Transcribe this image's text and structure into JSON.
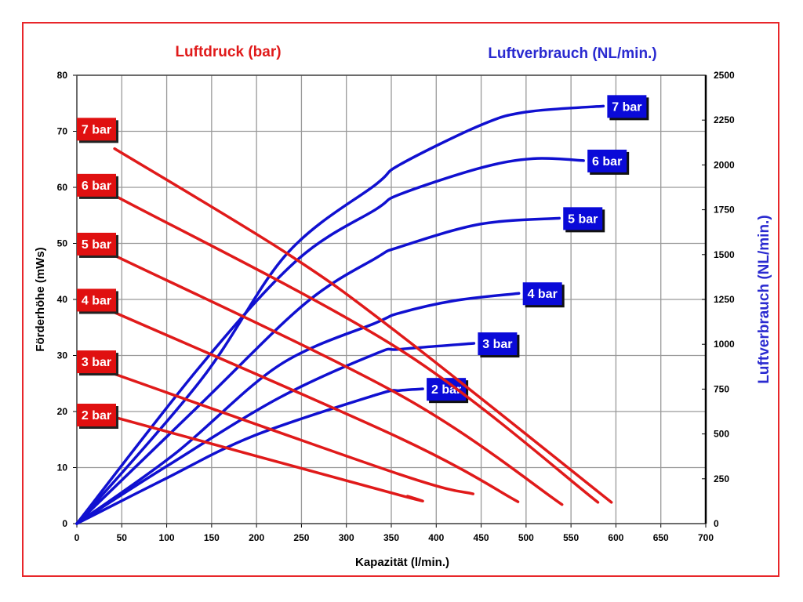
{
  "chart_data": {
    "type": "line",
    "title_left": "Luftdruck (bar)",
    "title_right": "Luftverbrauch (NL/min.)",
    "xlabel": "Kapazität (l/min.)",
    "ylabel": "Förderhöhe (mWs)",
    "y2label": "Luftverbrauch (NL/min.)",
    "xlim": [
      0,
      700
    ],
    "ylim": [
      0,
      80
    ],
    "y2lim": [
      0,
      2500
    ],
    "xticks": [
      0,
      50,
      100,
      150,
      200,
      250,
      300,
      350,
      400,
      450,
      500,
      550,
      600,
      650,
      700
    ],
    "yticks": [
      0,
      10,
      20,
      30,
      40,
      50,
      60,
      70,
      80
    ],
    "y2ticks": [
      0,
      250,
      500,
      750,
      1000,
      1250,
      1500,
      1750,
      2000,
      2250,
      2500
    ],
    "grid": true,
    "colors": {
      "head": "#e01a1a",
      "air": "#1010d0",
      "frame": "#e8262a"
    },
    "head_series": [
      {
        "name": "7 bar",
        "points": [
          [
            0,
            71
          ],
          [
            42,
            66.9
          ],
          [
            234,
            48.2
          ],
          [
            359,
            33.8
          ],
          [
            595,
            3.8
          ]
        ]
      },
      {
        "name": "6 bar",
        "points": [
          [
            0,
            61
          ],
          [
            46,
            58.2
          ],
          [
            359,
            31.1
          ],
          [
            580,
            3.8
          ]
        ]
      },
      {
        "name": "5 bar",
        "points": [
          [
            0,
            50.5
          ],
          [
            36,
            48.3
          ],
          [
            359,
            23.0
          ],
          [
            540,
            3.4
          ]
        ]
      },
      {
        "name": "4 bar",
        "points": [
          [
            0,
            40.5
          ],
          [
            33,
            38.3
          ],
          [
            359,
            15.3
          ],
          [
            491,
            3.9
          ]
        ]
      },
      {
        "name": "3 bar",
        "points": [
          [
            0,
            29.5
          ],
          [
            33,
            27.2
          ],
          [
            359,
            8.8
          ],
          [
            441,
            5.3
          ]
        ]
      },
      {
        "name": "2 bar",
        "points": [
          [
            0,
            20
          ],
          [
            46,
            18.8
          ],
          [
            359,
            5.1
          ],
          [
            368,
            4.9
          ]
        ]
      }
    ],
    "air_series": [
      {
        "name": "7 bar",
        "points": [
          [
            0,
            0
          ],
          [
            138,
            800
          ],
          [
            234,
            1506
          ],
          [
            333,
            1892
          ],
          [
            359,
            2000
          ],
          [
            449,
            2221
          ],
          [
            500,
            2295
          ],
          [
            586,
            2328
          ]
        ]
      },
      {
        "name": "6 bar",
        "points": [
          [
            0,
            0
          ],
          [
            138,
            882
          ],
          [
            246,
            1473
          ],
          [
            333,
            1753
          ],
          [
            359,
            1835
          ],
          [
            449,
            1983
          ],
          [
            508,
            2035
          ],
          [
            564,
            2024
          ]
        ]
      },
      {
        "name": "5 bar",
        "points": [
          [
            0,
            0
          ],
          [
            138,
            668
          ],
          [
            254,
            1227
          ],
          [
            333,
            1481
          ],
          [
            359,
            1542
          ],
          [
            449,
            1670
          ],
          [
            537,
            1703
          ]
        ]
      },
      {
        "name": "4 bar",
        "points": [
          [
            0,
            0
          ],
          [
            109,
            389
          ],
          [
            225,
            882
          ],
          [
            333,
            1120
          ],
          [
            359,
            1174
          ],
          [
            420,
            1243
          ],
          [
            492,
            1284
          ]
        ]
      },
      {
        "name": "3 bar",
        "points": [
          [
            0,
            0
          ],
          [
            100,
            320
          ],
          [
            225,
            701
          ],
          [
            333,
            948
          ],
          [
            359,
            972
          ],
          [
            442,
            1005
          ]
        ]
      },
      {
        "name": "2 bar",
        "points": [
          [
            0,
            0
          ],
          [
            95,
            241
          ],
          [
            196,
            488
          ],
          [
            333,
            718
          ],
          [
            359,
            742
          ],
          [
            385,
            751
          ]
        ]
      }
    ]
  }
}
